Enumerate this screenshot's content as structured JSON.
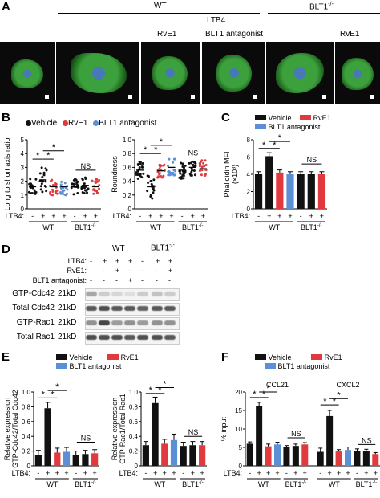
{
  "panels": {
    "A": {
      "letter": "A",
      "header_wt": "WT",
      "header_blt1": "BLT1",
      "header_blt1_sup": "-/-",
      "header_ltb4": "LTB4",
      "sub_rve1": "RvE1",
      "sub_blt1_antagonist": "BLT1 antagonist",
      "sub_rve1_b": "RvE1"
    },
    "B": {
      "letter": "B",
      "legend": [
        "Vehicle",
        "RvE1",
        "BLT1 antagonist"
      ],
      "left_ylabel": "Long to short axis ratio",
      "right_ylabel": "Roundness",
      "left_yticks": [
        "0",
        "1",
        "2",
        "3",
        "4",
        "5"
      ],
      "right_yticks": [
        "0",
        "0.2",
        "0.4",
        "0.6",
        "0.8",
        "1.0"
      ],
      "ltb4": "LTB4:",
      "signs": [
        "-",
        "+",
        "+",
        "+",
        "-",
        "+",
        "+"
      ],
      "wt": "WT",
      "blt1": "BLT1",
      "blt1_sup": "-/-",
      "star": "*",
      "ns": "NS"
    },
    "C": {
      "letter": "C",
      "legend": [
        "Vehicle",
        "RvE1",
        "BLT1 antagonist"
      ],
      "ylabel": "Phalloidin MFI",
      "ylabel_unit": "(×10³)",
      "yticks": [
        "0",
        "2",
        "4",
        "6",
        "8"
      ],
      "ltb4": "LTB4:",
      "signs": [
        "-",
        "+",
        "+",
        "+",
        "-",
        "+",
        "+"
      ],
      "wt": "WT",
      "blt1": "BLT1",
      "blt1_sup": "-/-",
      "star": "*",
      "ns": "NS"
    },
    "D": {
      "letter": "D",
      "wt": "WT",
      "blt1": "BLT1",
      "blt1_sup": "-/-",
      "row_labels": [
        "LTB4:",
        "RvE1:",
        "BLT1 antagonist:"
      ],
      "row_signs": [
        [
          "-",
          "+",
          "+",
          "+",
          "-",
          "+",
          "+"
        ],
        [
          "-",
          "-",
          "+",
          "-",
          "-",
          "-",
          "+"
        ],
        [
          "-",
          "-",
          "-",
          "+",
          "-",
          "-",
          "-"
        ]
      ],
      "blot_labels": [
        "GTP-Cdc42",
        "Total Cdc42",
        "GTP-Rac1",
        "Total Rac1"
      ],
      "blot_kd": [
        "21kD",
        "21kD",
        "21kD",
        "21kD"
      ]
    },
    "E": {
      "letter": "E",
      "legend": [
        "Vehicle",
        "RvE1",
        "BLT1 antagonist"
      ],
      "left_ylabel": "Relative expression",
      "left_ylabel2": "GTP-Cdc42/Total Cdc42",
      "right_ylabel": "Relative expression",
      "right_ylabel2": "GTP-Rac1/Total Rac1",
      "left_yticks": [
        "0",
        "0.2",
        "0.4",
        "0.6",
        "0.8",
        "1.0"
      ],
      "right_yticks": [
        "0",
        "0.2",
        "0.4",
        "0.6",
        "0.8",
        "1.0"
      ],
      "ltb4": "LTB4:",
      "signs": [
        "-",
        "+",
        "+",
        "+",
        "-",
        "+",
        "+"
      ],
      "wt": "WT",
      "blt1": "BLT1",
      "blt1_sup": "-/-",
      "star": "*",
      "ns": "NS"
    },
    "F": {
      "letter": "F",
      "legend": [
        "Vehicle",
        "RvE1",
        "BLT1 antagonist"
      ],
      "ylabel": "% input",
      "yticks": [
        "0",
        "5",
        "10",
        "15",
        "20"
      ],
      "ccl21": "CCL21",
      "cxcl2": "CXCL2",
      "ltb4": "LTB4:",
      "signs": [
        "-",
        "+",
        "+",
        "+",
        "-",
        "+",
        "+"
      ],
      "wt": "WT",
      "blt1": "BLT1",
      "blt1_sup": "-/-",
      "star": "*",
      "ns": "NS"
    }
  },
  "colors": {
    "vehicle": "#111111",
    "rve1": "#e03a3e",
    "blt1_antagonist": "#5b8fd6"
  },
  "chart_data": [
    {
      "type": "scatter",
      "panel": "B-left",
      "ylabel": "Long to short axis ratio",
      "ylim": [
        0,
        5
      ],
      "categories": [
        "WT -",
        "WT +",
        "WT + RvE1",
        "WT + BLT1 antagonist",
        "BLT1-/- -",
        "BLT1-/- +",
        "BLT1-/- + RvE1"
      ],
      "medians": [
        1.6,
        2.1,
        1.6,
        1.6,
        1.6,
        1.7,
        1.6
      ]
    },
    {
      "type": "scatter",
      "panel": "B-right",
      "ylabel": "Roundness",
      "ylim": [
        0,
        1.0
      ],
      "categories": [
        "WT -",
        "WT +",
        "WT + RvE1",
        "WT + BLT1 antagonist",
        "BLT1-/- -",
        "BLT1-/- +",
        "BLT1-/- + RvE1"
      ],
      "medians": [
        0.56,
        0.32,
        0.55,
        0.6,
        0.56,
        0.6,
        0.58
      ]
    },
    {
      "type": "bar",
      "panel": "C",
      "ylabel": "Phalloidin MFI (×10³)",
      "ylim": [
        0,
        8
      ],
      "categories": [
        "WT -",
        "WT +",
        "WT + RvE1",
        "WT + BLT1 antagonist",
        "BLT1-/- -",
        "BLT1-/- +",
        "BLT1-/- + RvE1"
      ],
      "values": [
        4.0,
        6.1,
        4.2,
        4.0,
        4.0,
        4.0,
        4.0
      ],
      "errors": [
        0.3,
        0.4,
        0.3,
        0.3,
        0.3,
        0.3,
        0.3
      ],
      "bar_colors": [
        "vehicle",
        "vehicle",
        "rve1",
        "blt1_antagonist",
        "vehicle",
        "vehicle",
        "rve1"
      ]
    },
    {
      "type": "bar",
      "panel": "E-left",
      "ylabel": "Relative expression GTP-Cdc42/Total Cdc42",
      "ylim": [
        0,
        1.0
      ],
      "categories": [
        "WT -",
        "WT +",
        "WT + RvE1",
        "WT + BLT1 antagonist",
        "BLT1-/- -",
        "BLT1-/- +",
        "BLT1-/- + RvE1"
      ],
      "values": [
        0.15,
        0.78,
        0.18,
        0.19,
        0.15,
        0.16,
        0.17
      ],
      "errors": [
        0.06,
        0.08,
        0.06,
        0.06,
        0.05,
        0.05,
        0.05
      ],
      "bar_colors": [
        "vehicle",
        "vehicle",
        "rve1",
        "blt1_antagonist",
        "vehicle",
        "vehicle",
        "rve1"
      ]
    },
    {
      "type": "bar",
      "panel": "E-right",
      "ylabel": "Relative expression GTP-Rac1/Total Rac1",
      "ylim": [
        0,
        1.0
      ],
      "categories": [
        "WT -",
        "WT +",
        "WT + RvE1",
        "WT + BLT1 antagonist",
        "BLT1-/- -",
        "BLT1-/- +",
        "BLT1-/- + RvE1"
      ],
      "values": [
        0.28,
        0.85,
        0.3,
        0.35,
        0.27,
        0.28,
        0.28
      ],
      "errors": [
        0.05,
        0.08,
        0.06,
        0.08,
        0.05,
        0.05,
        0.05
      ],
      "bar_colors": [
        "vehicle",
        "vehicle",
        "rve1",
        "blt1_antagonist",
        "vehicle",
        "vehicle",
        "rve1"
      ]
    },
    {
      "type": "bar",
      "panel": "F",
      "ylabel": "% input",
      "ylim": [
        0,
        20
      ],
      "groups": [
        "CCL21",
        "CXCL2"
      ],
      "categories": [
        "WT -",
        "WT +",
        "WT + RvE1",
        "WT + BLT1 antagonist",
        "BLT1-/- -",
        "BLT1-/- +",
        "BLT1-/- + RvE1"
      ],
      "series": [
        {
          "name": "CCL21",
          "values": [
            6.0,
            16.2,
            5.3,
            5.8,
            5.0,
            5.4,
            5.8
          ],
          "errors": [
            0.5,
            1.0,
            0.6,
            0.6,
            0.5,
            0.5,
            0.5
          ]
        },
        {
          "name": "CXCL2",
          "values": [
            3.8,
            13.5,
            3.9,
            4.3,
            4.0,
            4.0,
            3.2
          ],
          "errors": [
            1.0,
            1.5,
            0.5,
            0.8,
            0.6,
            0.5,
            0.4
          ]
        }
      ],
      "bar_colors": [
        "vehicle",
        "vehicle",
        "rve1",
        "blt1_antagonist",
        "vehicle",
        "vehicle",
        "rve1"
      ]
    }
  ]
}
